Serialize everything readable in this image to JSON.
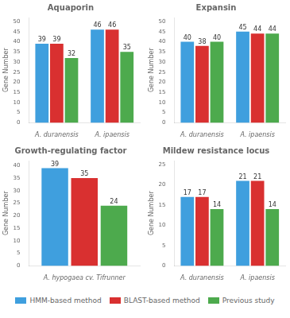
{
  "chart_data": [
    {
      "type": "bar",
      "title": "Aquaporin",
      "ylabel": "Gene Number",
      "categories": [
        "A. duranensis",
        "A. ipaensis"
      ],
      "series": [
        {
          "name": "HMM-based method",
          "color": "#3f9fde",
          "values": [
            39,
            46
          ]
        },
        {
          "name": "BLAST-based method",
          "color": "#d93030",
          "values": [
            39,
            46
          ]
        },
        {
          "name": "Previous study",
          "color": "#4daa4d",
          "values": [
            32,
            35
          ]
        }
      ],
      "ylim": [
        0,
        52
      ],
      "yticks": [
        0,
        5,
        10,
        15,
        20,
        25,
        30,
        35,
        40,
        45,
        50
      ],
      "grid": false,
      "data_labels": true,
      "legend": "bottom"
    },
    {
      "type": "bar",
      "title": "Expansin",
      "ylabel": "Gene Number",
      "categories": [
        "A. duranensis",
        "A. ipaensis"
      ],
      "series": [
        {
          "name": "HMM-based method",
          "color": "#3f9fde",
          "values": [
            40,
            45
          ]
        },
        {
          "name": "BLAST-based method",
          "color": "#d93030",
          "values": [
            38,
            44
          ]
        },
        {
          "name": "Previous study",
          "color": "#4daa4d",
          "values": [
            40,
            44
          ]
        }
      ],
      "ylim": [
        0,
        52
      ],
      "yticks": [
        0,
        5,
        10,
        15,
        20,
        25,
        30,
        35,
        40,
        45,
        50
      ],
      "grid": false,
      "data_labels": true,
      "legend": "bottom"
    },
    {
      "type": "bar",
      "title": "Growth-regulating factor",
      "ylabel": "Gene Number",
      "categories": [
        "A. hypogaea cv. Tifrunner"
      ],
      "series": [
        {
          "name": "HMM-based method",
          "color": "#3f9fde",
          "values": [
            39
          ]
        },
        {
          "name": "BLAST-based method",
          "color": "#d93030",
          "values": [
            35
          ]
        },
        {
          "name": "Previous study",
          "color": "#4daa4d",
          "values": [
            24
          ]
        }
      ],
      "ylim": [
        0,
        42
      ],
      "yticks": [
        0,
        5,
        10,
        15,
        20,
        25,
        30,
        35,
        40
      ],
      "grid": false,
      "data_labels": true,
      "legend": "bottom"
    },
    {
      "type": "bar",
      "title": "Mildew resistance locus",
      "ylabel": "Gene Number",
      "categories": [
        "A. duranensis",
        "A. ipaensis"
      ],
      "series": [
        {
          "name": "HMM-based method",
          "color": "#3f9fde",
          "values": [
            17,
            21
          ]
        },
        {
          "name": "BLAST-based method",
          "color": "#d93030",
          "values": [
            17,
            21
          ]
        },
        {
          "name": "Previous study",
          "color": "#4daa4d",
          "values": [
            14,
            14
          ]
        }
      ],
      "ylim": [
        0,
        26
      ],
      "yticks": [
        0,
        5,
        10,
        15,
        20,
        25
      ],
      "grid": false,
      "data_labels": true,
      "legend": "bottom"
    }
  ]
}
